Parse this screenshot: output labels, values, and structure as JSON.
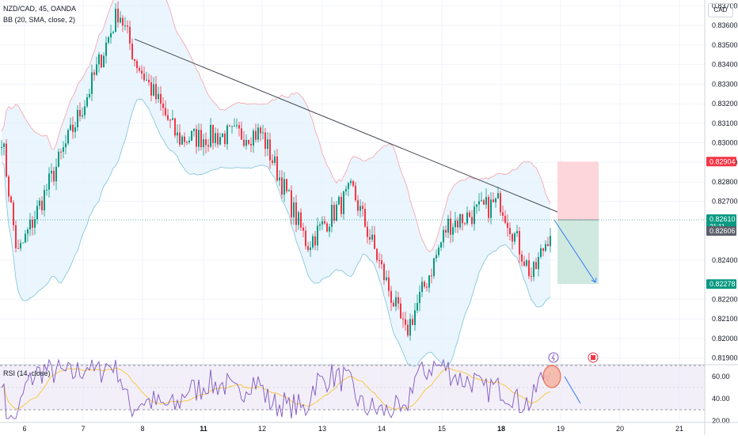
{
  "header": {
    "symbol_line": "NZD/CAD, 45, OANDA",
    "indicator_line": "BB (20, SMA, close, 2)",
    "currency": "CAD"
  },
  "rsi": {
    "label": "RSI (14, close)",
    "ticks": [
      "60.00",
      "40.00",
      "20.00"
    ]
  },
  "price_axis": {
    "ticks": [
      "0.83700",
      "0.83600",
      "0.83500",
      "0.83400",
      "0.83300",
      "0.83200",
      "0.83100",
      "0.83000",
      "0.82900",
      "0.82800",
      "0.82700",
      "0.82400",
      "0.82200",
      "0.82100",
      "0.82000",
      "0.81900"
    ],
    "badges": [
      {
        "text": "0.82904",
        "color": "#f23645"
      },
      {
        "text": "0.82610",
        "sub": "21:11",
        "color": "#089981"
      },
      {
        "text": "0.82606",
        "color": "#5d606b"
      },
      {
        "text": "0.82278",
        "color": "#089981"
      }
    ]
  },
  "time_axis": {
    "labels": [
      "6",
      "7",
      "8",
      "11",
      "12",
      "13",
      "14",
      "15",
      "18",
      "19",
      "20",
      "21"
    ]
  },
  "colors": {
    "up": "#089981",
    "down": "#f23645",
    "bb_fill": "#e3f2fd",
    "bb_upper": "#f7a0a8",
    "bb_lower": "#7ec3d6",
    "trendline": "#434651",
    "stop_zone": "#fcd6da",
    "target_zone": "#cfe9e1",
    "rsi_line": "#7e57c2",
    "rsi_ma": "#f7c948",
    "rsi_band": "#ede7f6"
  },
  "chart_data": {
    "type": "candlestick",
    "symbol": "NZD/CAD",
    "timeframe": "45",
    "ylim": [
      0.8187,
      0.8373
    ],
    "trendline": {
      "start": [
        "7",
        0.8353
      ],
      "end": [
        "18",
        0.8262
      ]
    },
    "position": {
      "stop": 0.82904,
      "entry": 0.82606,
      "target": 0.82278
    },
    "key_path": [
      {
        "x": "6",
        "y": 0.831
      },
      {
        "x": "6",
        "y": 0.8242
      },
      {
        "x": "7",
        "y": 0.8322
      },
      {
        "x": "8",
        "y": 0.8368
      },
      {
        "x": "8",
        "y": 0.8343
      },
      {
        "x": "11",
        "y": 0.8302
      },
      {
        "x": "12",
        "y": 0.8305
      },
      {
        "x": "13",
        "y": 0.8248
      },
      {
        "x": "13",
        "y": 0.8276
      },
      {
        "x": "14",
        "y": 0.8202
      },
      {
        "x": "15",
        "y": 0.8239
      },
      {
        "x": "15",
        "y": 0.8258
      },
      {
        "x": "18",
        "y": 0.827
      },
      {
        "x": "18",
        "y": 0.8231
      },
      {
        "x": "18",
        "y": 0.8261
      }
    ],
    "rsi_range": [
      20,
      70
    ],
    "rsi_levels": [
      70,
      30
    ]
  }
}
